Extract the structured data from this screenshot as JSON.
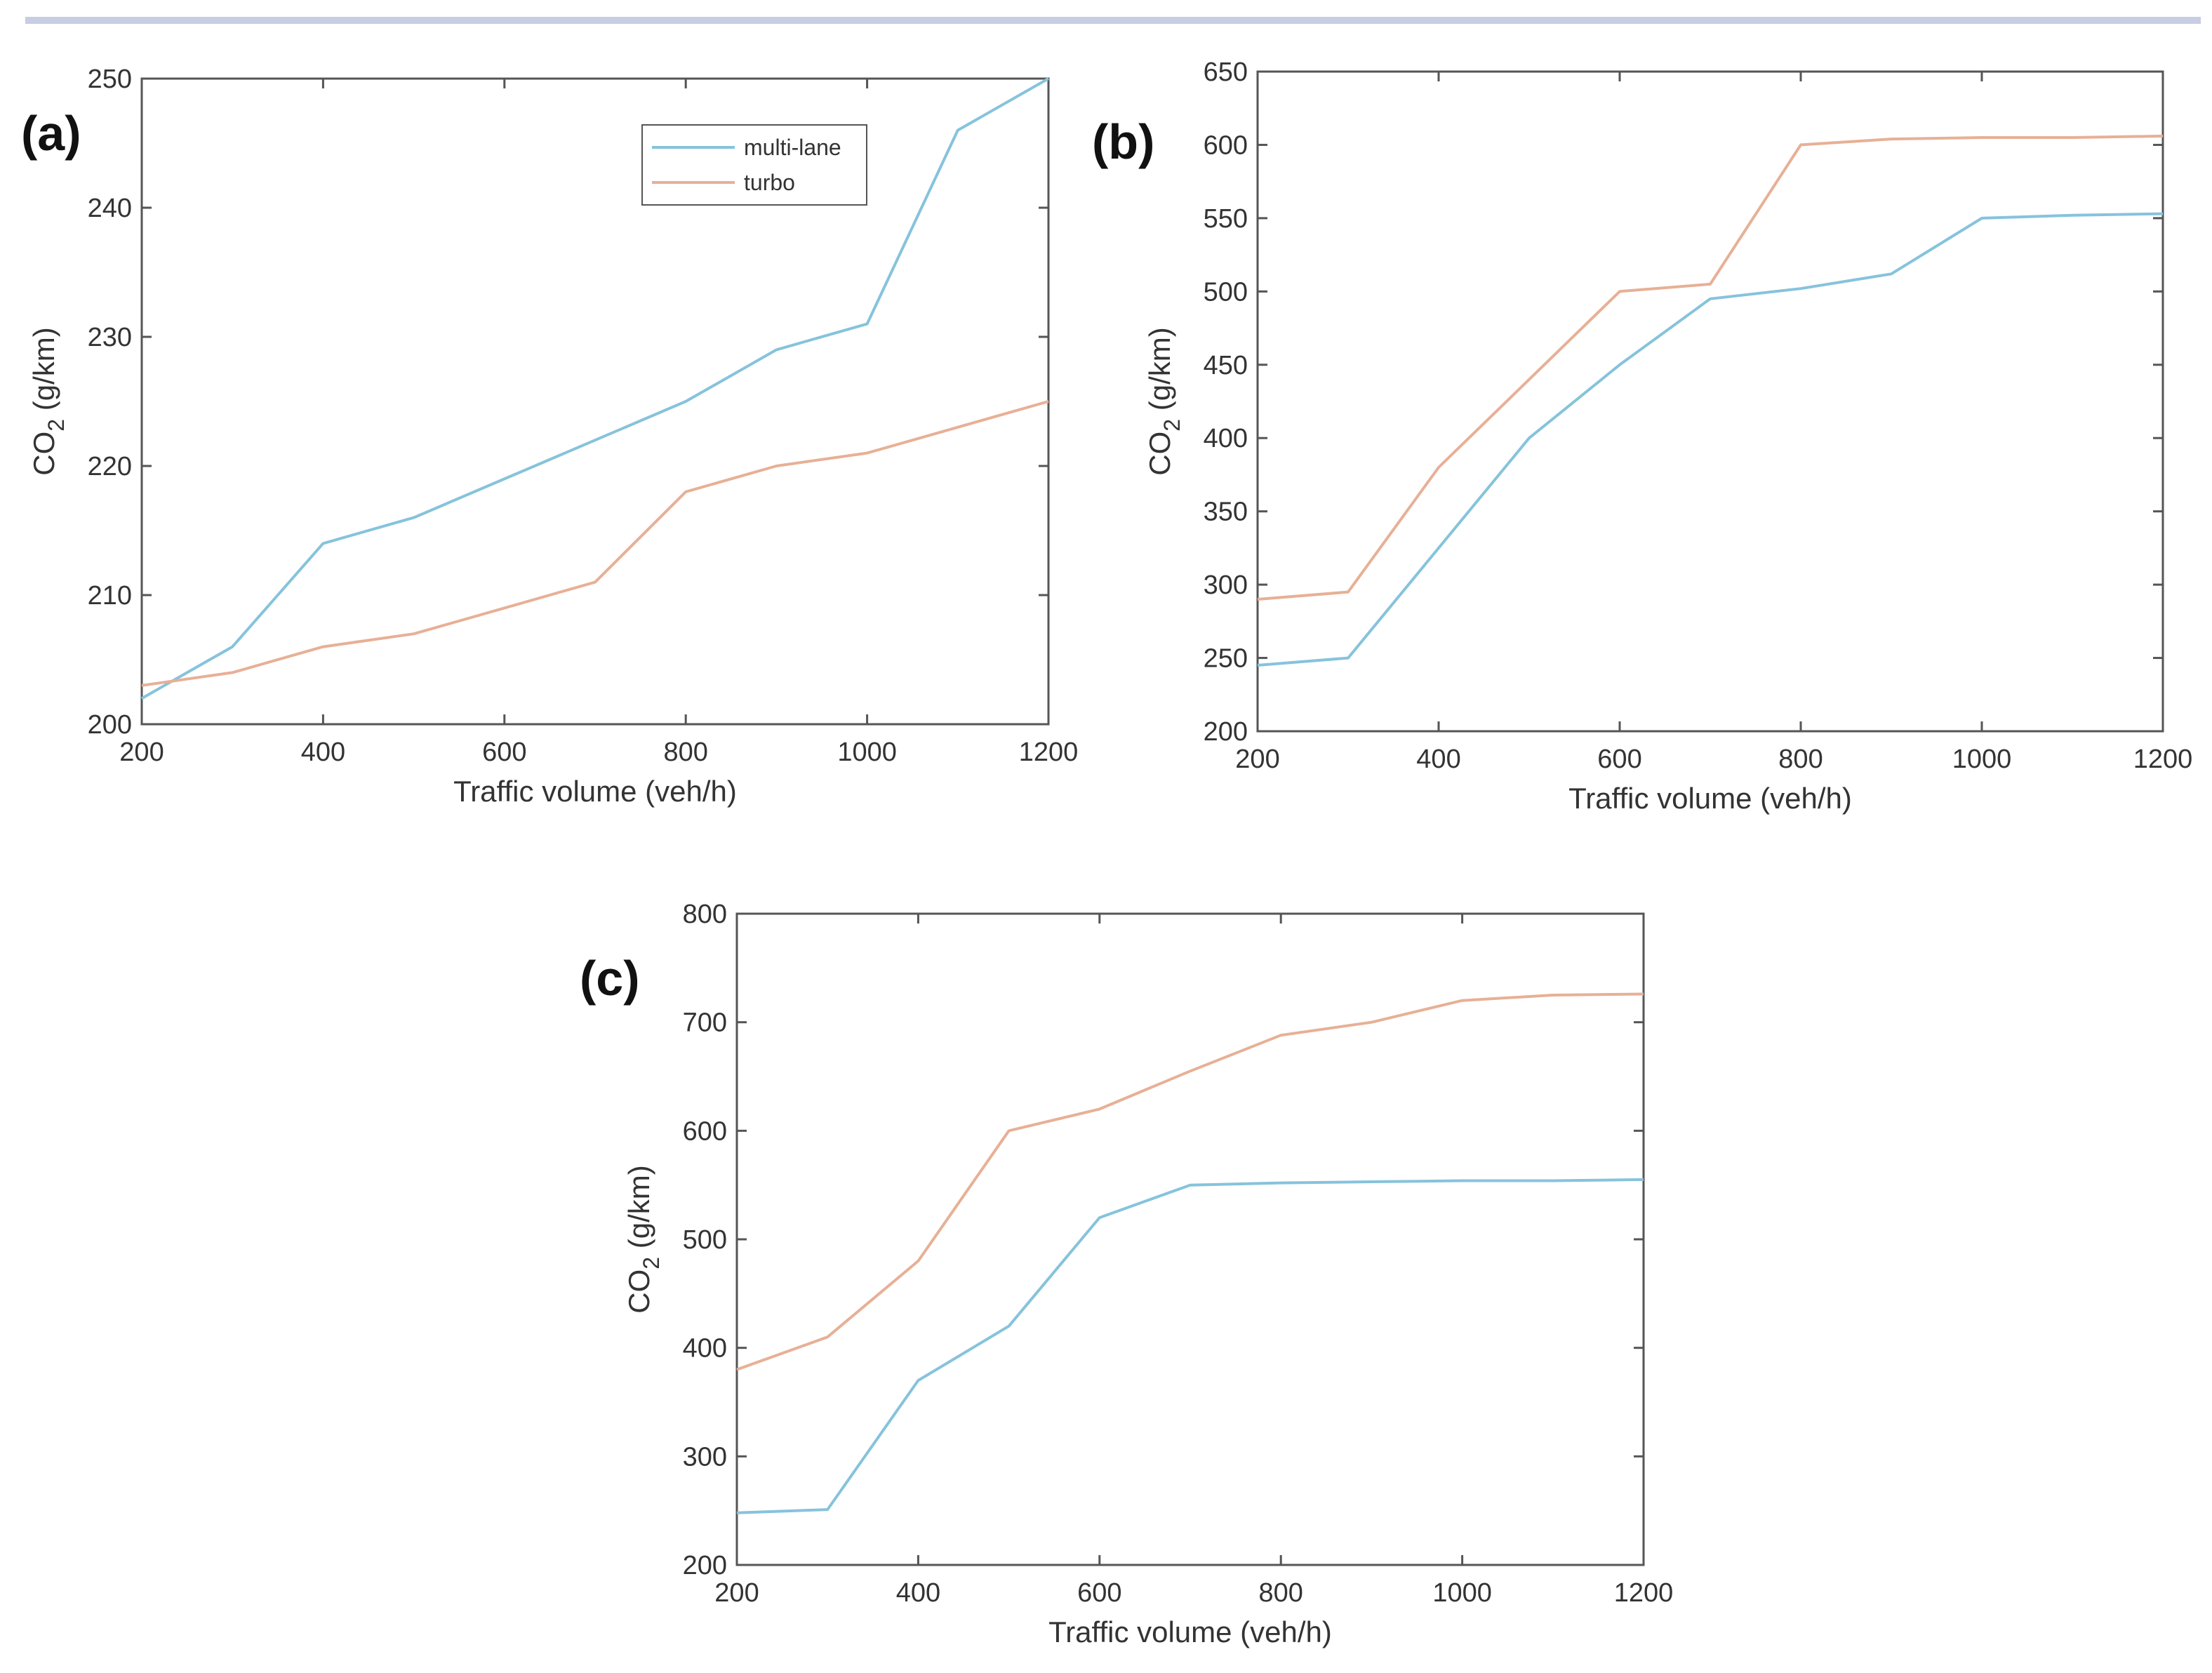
{
  "colors": {
    "multi_lane": "#86c3dc",
    "turbo": "#e7b096",
    "axis": "#555555"
  },
  "chart_data": [
    {
      "type": "line",
      "panel_label": "(a)",
      "xlabel": "Traffic volume (veh/h)",
      "ylabel": {
        "base": "CO",
        "sub": "2",
        "unit": " (g/km)"
      },
      "xlim": [
        200,
        1200
      ],
      "ylim": [
        200,
        250
      ],
      "xticks": [
        "200",
        "400",
        "600",
        "800",
        "1000",
        "1200"
      ],
      "yticks": [
        "200",
        "210",
        "220",
        "230",
        "240",
        "250"
      ],
      "legend": {
        "position": "top-right",
        "entries": [
          "multi-lane",
          "turbo"
        ]
      },
      "series": [
        {
          "name": "multi-lane",
          "x": [
            200,
            300,
            400,
            500,
            600,
            700,
            800,
            900,
            1000,
            1100,
            1200
          ],
          "y": [
            202,
            206,
            214,
            216,
            219,
            222,
            225,
            229,
            231,
            246,
            250
          ]
        },
        {
          "name": "turbo",
          "x": [
            200,
            300,
            400,
            500,
            600,
            700,
            800,
            900,
            1000,
            1100,
            1200
          ],
          "y": [
            203,
            204,
            206,
            207,
            209,
            211,
            218,
            220,
            221,
            223,
            225
          ]
        }
      ]
    },
    {
      "type": "line",
      "panel_label": "(b)",
      "xlabel": "Traffic volume (veh/h)",
      "ylabel": {
        "base": "CO",
        "sub": "2",
        "unit": " (g/km)"
      },
      "xlim": [
        200,
        1200
      ],
      "ylim": [
        200,
        650
      ],
      "xticks": [
        "200",
        "400",
        "600",
        "800",
        "1000",
        "1200"
      ],
      "yticks": [
        "200",
        "250",
        "300",
        "350",
        "400",
        "450",
        "500",
        "550",
        "600",
        "650"
      ],
      "series": [
        {
          "name": "multi-lane",
          "x": [
            200,
            300,
            400,
            500,
            600,
            700,
            800,
            900,
            1000,
            1100,
            1200
          ],
          "y": [
            245,
            250,
            325,
            400,
            450,
            495,
            502,
            512,
            550,
            552,
            553
          ]
        },
        {
          "name": "turbo",
          "x": [
            200,
            300,
            400,
            500,
            600,
            700,
            800,
            900,
            1000,
            1100,
            1200
          ],
          "y": [
            290,
            295,
            380,
            440,
            500,
            505,
            600,
            604,
            605,
            605,
            606
          ]
        }
      ]
    },
    {
      "type": "line",
      "panel_label": "(c)",
      "xlabel": "Traffic volume (veh/h)",
      "ylabel": {
        "base": "CO",
        "sub": "2",
        "unit": " (g/km)"
      },
      "xlim": [
        200,
        1200
      ],
      "ylim": [
        200,
        800
      ],
      "xticks": [
        "200",
        "400",
        "600",
        "800",
        "1000",
        "1200"
      ],
      "yticks": [
        "200",
        "300",
        "400",
        "500",
        "600",
        "700",
        "800"
      ],
      "series": [
        {
          "name": "multi-lane",
          "x": [
            200,
            300,
            400,
            500,
            600,
            700,
            800,
            900,
            1000,
            1100,
            1200
          ],
          "y": [
            248,
            251,
            370,
            420,
            520,
            550,
            552,
            553,
            554,
            554,
            555
          ]
        },
        {
          "name": "turbo",
          "x": [
            200,
            300,
            400,
            500,
            600,
            700,
            800,
            900,
            1000,
            1100,
            1200
          ],
          "y": [
            380,
            410,
            480,
            600,
            620,
            655,
            688,
            700,
            720,
            725,
            726
          ]
        }
      ]
    }
  ]
}
